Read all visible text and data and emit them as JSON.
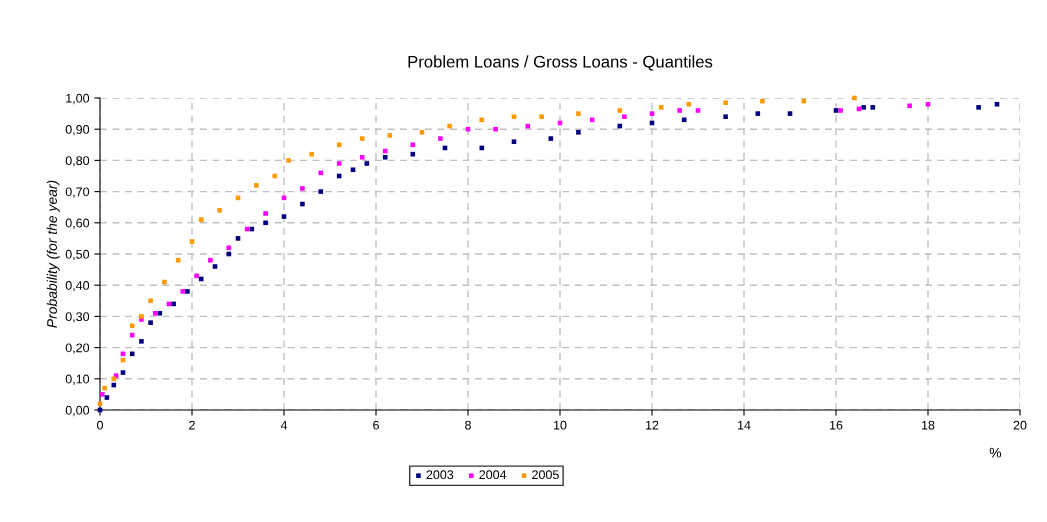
{
  "chart_data": {
    "type": "scatter",
    "title": "Problem Loans / Gross Loans - Quantiles",
    "xlabel": "%",
    "ylabel": "Probability (for the year)",
    "marker": "square",
    "grid": true,
    "legend": "bottom",
    "xlim": [
      0,
      20
    ],
    "xticks": [
      0,
      2,
      4,
      6,
      8,
      10,
      12,
      14,
      16,
      18,
      20
    ],
    "ylim": [
      0,
      1
    ],
    "yticks": [
      {
        "value": 0,
        "label": "0,00"
      },
      {
        "value": 0.1,
        "label": "0,10"
      },
      {
        "value": 0.2,
        "label": "0,20"
      },
      {
        "value": 0.3,
        "label": "0,30"
      },
      {
        "value": 0.4,
        "label": "0,40"
      },
      {
        "value": 0.5,
        "label": "0,50"
      },
      {
        "value": 0.6,
        "label": "0,60"
      },
      {
        "value": 0.7,
        "label": "0,70"
      },
      {
        "value": 0.8,
        "label": "0,80"
      },
      {
        "value": 0.9,
        "label": "0,90"
      },
      {
        "value": 1,
        "label": "1,00"
      }
    ],
    "series": [
      {
        "name": "2003",
        "color": "#000080",
        "x": [
          0.0,
          0.15,
          0.3,
          0.5,
          0.7,
          0.9,
          1.1,
          1.3,
          1.6,
          1.9,
          2.2,
          2.5,
          2.8,
          3.0,
          3.3,
          3.6,
          4.0,
          4.4,
          4.8,
          5.2,
          5.5,
          5.8,
          6.2,
          6.8,
          7.5,
          8.3,
          9.0,
          9.8,
          10.4,
          11.3,
          12.0,
          12.7,
          13.6,
          14.3,
          15.0,
          16.0,
          16.6,
          16.8,
          19.1,
          19.5
        ],
        "values": [
          0.0,
          0.04,
          0.08,
          0.12,
          0.18,
          0.22,
          0.28,
          0.31,
          0.34,
          0.38,
          0.42,
          0.46,
          0.5,
          0.55,
          0.58,
          0.6,
          0.62,
          0.66,
          0.7,
          0.75,
          0.77,
          0.79,
          0.81,
          0.82,
          0.84,
          0.84,
          0.86,
          0.87,
          0.89,
          0.91,
          0.92,
          0.93,
          0.94,
          0.95,
          0.95,
          0.96,
          0.97,
          0.97,
          0.97,
          0.98
        ]
      },
      {
        "name": "2004",
        "color": "#ff00ff",
        "x": [
          0.05,
          0.35,
          0.5,
          0.7,
          0.9,
          1.2,
          1.5,
          1.8,
          2.1,
          2.4,
          2.8,
          3.2,
          3.6,
          4.0,
          4.4,
          4.8,
          5.2,
          5.7,
          6.2,
          6.8,
          7.4,
          8.0,
          8.6,
          9.3,
          10.0,
          10.7,
          11.4,
          12.0,
          12.6,
          13.0,
          16.1,
          16.5,
          17.6,
          18.0
        ],
        "values": [
          0.05,
          0.11,
          0.18,
          0.24,
          0.29,
          0.31,
          0.34,
          0.38,
          0.43,
          0.48,
          0.52,
          0.58,
          0.63,
          0.68,
          0.71,
          0.76,
          0.79,
          0.81,
          0.83,
          0.85,
          0.87,
          0.9,
          0.9,
          0.91,
          0.92,
          0.93,
          0.94,
          0.95,
          0.96,
          0.96,
          0.96,
          0.965,
          0.975,
          0.98
        ]
      },
      {
        "name": "2005",
        "color": "#ff9900",
        "x": [
          0.0,
          0.1,
          0.3,
          0.5,
          0.7,
          0.9,
          1.1,
          1.4,
          1.7,
          2.0,
          2.2,
          2.6,
          3.0,
          3.4,
          3.8,
          4.1,
          4.6,
          5.2,
          5.7,
          6.3,
          7.0,
          7.6,
          8.3,
          9.0,
          9.6,
          10.4,
          11.3,
          12.2,
          12.8,
          13.6,
          14.4,
          15.3,
          16.4
        ],
        "values": [
          0.02,
          0.07,
          0.1,
          0.16,
          0.27,
          0.3,
          0.35,
          0.41,
          0.48,
          0.54,
          0.61,
          0.64,
          0.68,
          0.72,
          0.75,
          0.8,
          0.82,
          0.85,
          0.87,
          0.88,
          0.89,
          0.91,
          0.93,
          0.94,
          0.94,
          0.95,
          0.96,
          0.97,
          0.98,
          0.985,
          0.99,
          0.99,
          1.0
        ]
      }
    ]
  }
}
